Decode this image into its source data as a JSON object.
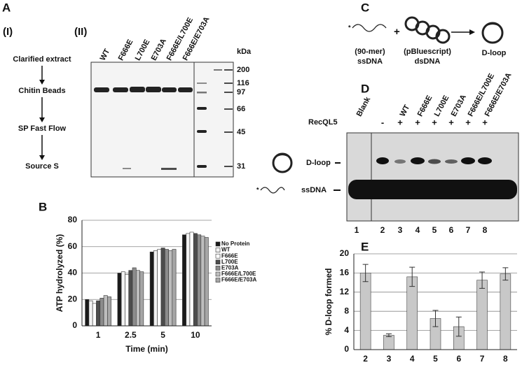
{
  "panel_a": {
    "label": "A",
    "part1_label": "(I)",
    "part2_label": "(II)",
    "flow_steps": [
      "Clarified extract",
      "Chitin Beads",
      "SP Fast Flow",
      "Source S"
    ],
    "lanes": [
      "WT",
      "F666E",
      "L700E",
      "E703A",
      "F666E/L700E",
      "F666E/E703A"
    ],
    "kda_label": "kDa",
    "markers": [
      200,
      116,
      97,
      66,
      45,
      31
    ]
  },
  "panel_c": {
    "label": "C",
    "star": "*",
    "plus": "+",
    "ssdna_lines": [
      "(90-mer)",
      "ssDNA"
    ],
    "dsdna_lines": [
      "(pBluescript)",
      "dsDNA"
    ],
    "product": "D-loop"
  },
  "panel_d": {
    "label": "D",
    "lanes": [
      "Blank",
      null,
      "WT",
      "F666E",
      "L700E",
      "E703A",
      "F666E/L700E",
      "F666E/E703A"
    ],
    "protein_label": "RecQL5",
    "protein_signs": [
      null,
      "-",
      "+",
      "+",
      "+",
      "+",
      "+",
      "+"
    ],
    "band_labels": [
      "D-loop",
      "ssDNA"
    ],
    "star": "*",
    "lane_numbers": [
      1,
      2,
      3,
      4,
      5,
      6,
      7,
      8
    ]
  },
  "chart_data": [
    {
      "type": "bar",
      "panel": "B",
      "y_label": "ATP hydrolyzed (%)",
      "x_label": "Time (min)",
      "categories": [
        "1",
        "2.5",
        "5",
        "10"
      ],
      "series": [
        {
          "name": "No Protein",
          "color": "#1a1a1a",
          "values": [
            20,
            40,
            56,
            69
          ]
        },
        {
          "name": "WT",
          "color": "#f2f2f2",
          "values": [
            19,
            41,
            57,
            70
          ]
        },
        {
          "name": "F666E",
          "color": "#ffffff",
          "values": [
            17,
            39,
            58,
            71
          ]
        },
        {
          "name": "L700E",
          "color": "#4d4d4d",
          "values": [
            19,
            42,
            59,
            70
          ]
        },
        {
          "name": "E703A",
          "color": "#8c8c8c",
          "values": [
            21,
            44,
            58,
            69
          ]
        },
        {
          "name": "F666E/L700E",
          "color": "#bdbdbd",
          "values": [
            23,
            42,
            57,
            68
          ]
        },
        {
          "name": "F666E/E703A",
          "color": "#a6a6a6",
          "values": [
            22,
            41,
            58,
            67
          ]
        }
      ],
      "ylim": [
        0,
        80
      ],
      "yticks": [
        0,
        20,
        40,
        60,
        80
      ],
      "grid": true,
      "legend": "right"
    },
    {
      "type": "bar",
      "panel": "E",
      "y_label": "% D-loop formed",
      "categories": [
        "2",
        "3",
        "4",
        "5",
        "6",
        "7",
        "8"
      ],
      "values": [
        16,
        3,
        15.2,
        6.5,
        4.8,
        14.5,
        15.8
      ],
      "errors": [
        1.8,
        0.3,
        2,
        1.7,
        2,
        1.7,
        1.3
      ],
      "color": "#c8c8c8",
      "ylim": [
        0,
        20
      ],
      "yticks": [
        0,
        4,
        8,
        12,
        16,
        20
      ],
      "grid": true
    }
  ]
}
